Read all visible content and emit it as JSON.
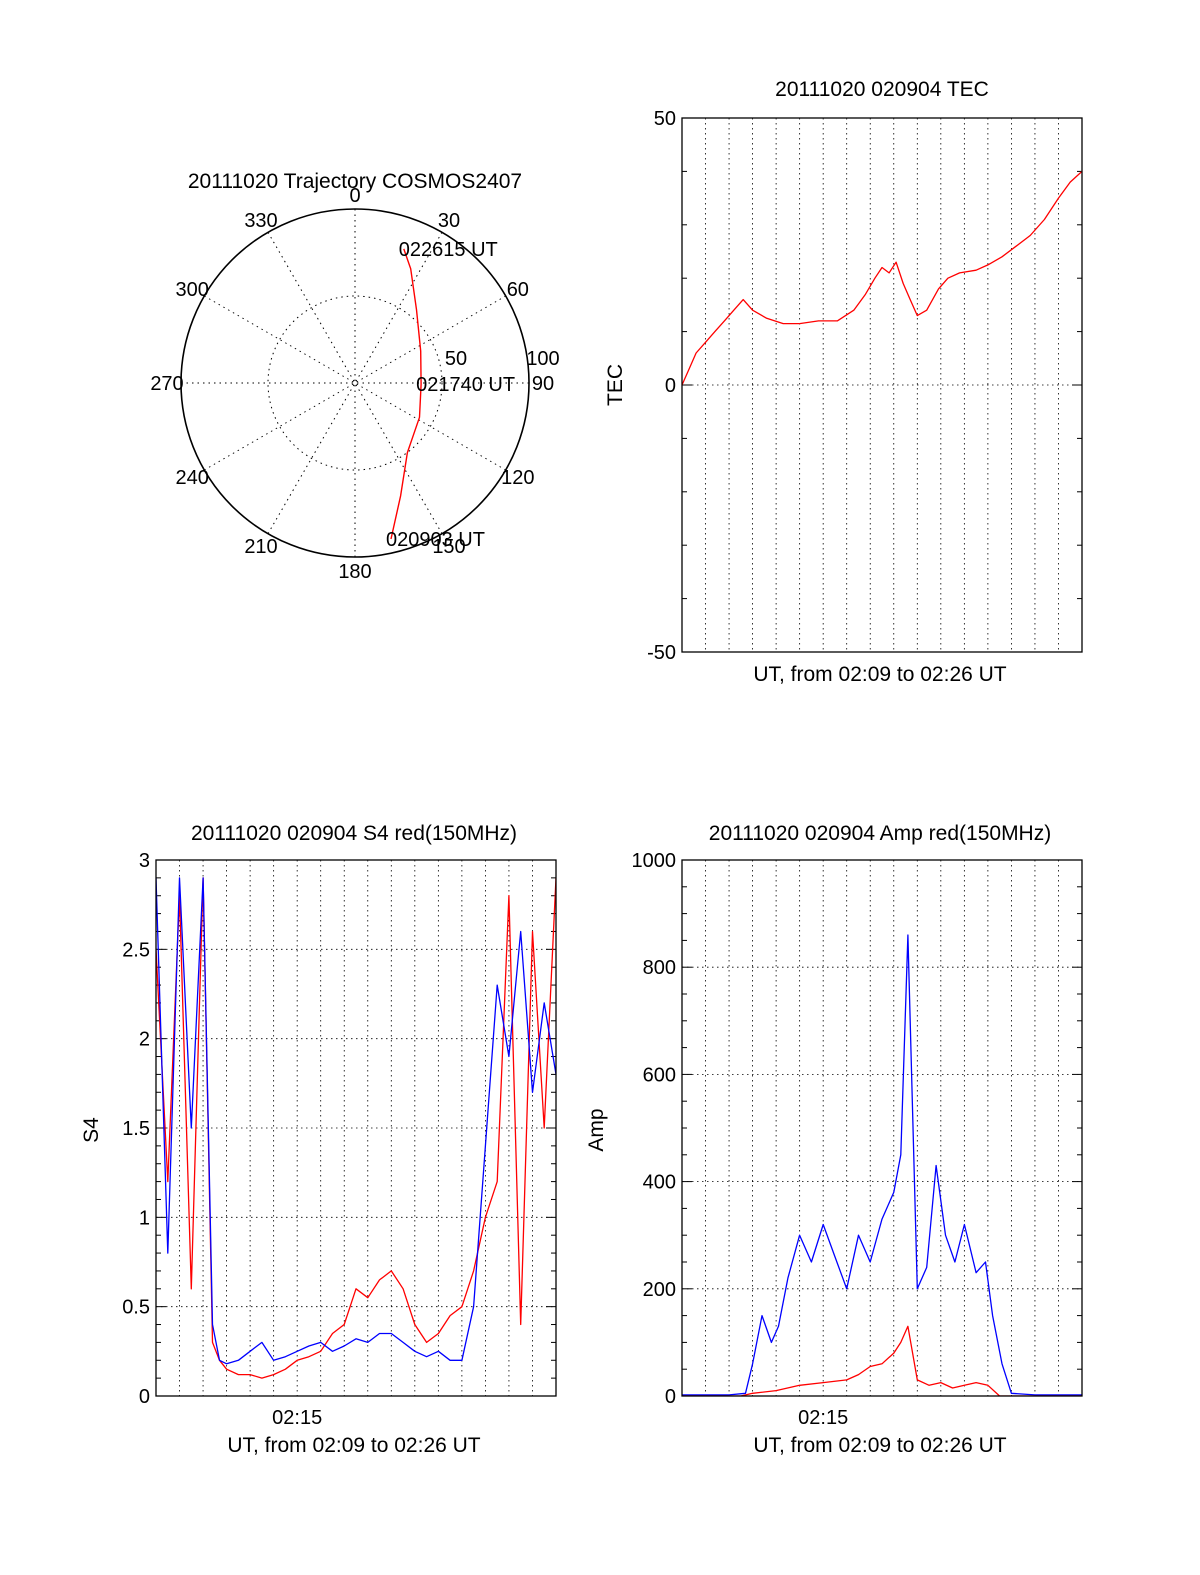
{
  "chart_data": [
    {
      "type": "polar",
      "title": "20111020 Trajectory COSMOS2407",
      "angle_labels": [
        "0",
        "30",
        "60",
        "90",
        "120",
        "150",
        "180",
        "210",
        "240",
        "270",
        "300",
        "330"
      ],
      "radius_labels": [
        "50",
        "100"
      ],
      "rlim": [
        0,
        100
      ],
      "grid": true,
      "series": [
        {
          "color": "#ff0000",
          "points": [
            {
              "az": 167,
              "r": 92
            },
            {
              "az": 158,
              "r": 70
            },
            {
              "az": 143,
              "r": 50
            },
            {
              "az": 118,
              "r": 42
            },
            {
              "az": 91,
              "r": 38
            },
            {
              "az": 64,
              "r": 42
            },
            {
              "az": 40,
              "r": 55
            },
            {
              "az": 26,
              "r": 73
            },
            {
              "az": 20,
              "r": 82
            }
          ]
        }
      ],
      "annotations": [
        {
          "text": "022615 UT",
          "az": 20,
          "r": 82
        },
        {
          "text": "021740 UT",
          "az": 91,
          "r": 38
        },
        {
          "text": "020903 UT",
          "az": 167,
          "r": 92
        }
      ]
    },
    {
      "type": "line",
      "title": "20111020 020904 TEC",
      "xlabel": "UT, from 02:09 to 02:26 UT",
      "ylabel": "TEC",
      "xlim": [
        0,
        17
      ],
      "ylim": [
        -50,
        50
      ],
      "yticks": [
        -50,
        0,
        50
      ],
      "grid": true,
      "series": [
        {
          "color": "#ff0000",
          "x": [
            0,
            0.3,
            0.6,
            1.0,
            1.4,
            1.8,
            2.2,
            2.6,
            3.0,
            3.6,
            4.3,
            5.0,
            5.8,
            6.6,
            7.3,
            7.8,
            8.2,
            8.5,
            8.8,
            9.1,
            9.4,
            9.7,
            10.0,
            10.4,
            10.9,
            11.3,
            11.8,
            12.5,
            13.0,
            13.6,
            14.2,
            14.8,
            15.4,
            16.0,
            16.5,
            17.0
          ],
          "y": [
            0,
            3,
            6,
            8,
            10,
            12,
            14,
            16,
            14,
            12.5,
            11.5,
            11.5,
            12,
            12,
            14,
            17,
            20,
            22,
            21,
            23,
            19,
            16,
            13,
            14,
            18,
            20,
            21,
            21.5,
            22.5,
            24,
            26,
            28,
            31,
            35,
            38,
            40
          ]
        }
      ]
    },
    {
      "type": "line",
      "title": "20111020 020904 S4 red(150MHz)",
      "xlabel": "UT, from 02:09 to 02:26 UT",
      "ylabel": "S4",
      "xlim": [
        0,
        17
      ],
      "ylim": [
        0,
        3
      ],
      "yticks": [
        0,
        0.5,
        1,
        1.5,
        2,
        2.5,
        3
      ],
      "xticks": [
        {
          "value": 6,
          "label": "02:15"
        }
      ],
      "grid": true,
      "series": [
        {
          "color": "#ff0000",
          "x": [
            0,
            0.5,
            1.0,
            1.5,
            2.0,
            2.4,
            2.7,
            3.0,
            3.5,
            4.0,
            4.5,
            5.0,
            5.5,
            6.0,
            6.5,
            7.0,
            7.5,
            8.0,
            8.5,
            9.0,
            9.5,
            10.0,
            10.5,
            11.0,
            11.5,
            12.0,
            12.5,
            13.0,
            13.5,
            14.0,
            14.5,
            15.0,
            15.5,
            16.0,
            16.5,
            17.0
          ],
          "y": [
            2.5,
            1.2,
            2.8,
            0.6,
            2.9,
            0.3,
            0.2,
            0.15,
            0.12,
            0.12,
            0.1,
            0.12,
            0.15,
            0.2,
            0.22,
            0.25,
            0.35,
            0.4,
            0.6,
            0.55,
            0.65,
            0.7,
            0.6,
            0.4,
            0.3,
            0.35,
            0.45,
            0.5,
            0.7,
            1.0,
            1.2,
            2.8,
            0.4,
            2.6,
            1.5,
            2.9
          ]
        },
        {
          "color": "#0000ff",
          "x": [
            0,
            0.5,
            1.0,
            1.5,
            2.0,
            2.4,
            2.7,
            3.0,
            3.5,
            4.0,
            4.5,
            5.0,
            5.5,
            6.0,
            6.5,
            7.0,
            7.5,
            8.0,
            8.5,
            9.0,
            9.5,
            10.0,
            10.5,
            11.0,
            11.5,
            12.0,
            12.5,
            13.0,
            13.5,
            14.0,
            14.5,
            15.0,
            15.5,
            16.0,
            16.5,
            17.0
          ],
          "y": [
            2.9,
            0.8,
            2.9,
            1.5,
            2.9,
            0.4,
            0.2,
            0.18,
            0.2,
            0.25,
            0.3,
            0.2,
            0.22,
            0.25,
            0.28,
            0.3,
            0.25,
            0.28,
            0.32,
            0.3,
            0.35,
            0.35,
            0.3,
            0.25,
            0.22,
            0.25,
            0.2,
            0.2,
            0.5,
            1.4,
            2.3,
            1.9,
            2.6,
            1.7,
            2.2,
            1.8
          ]
        }
      ]
    },
    {
      "type": "line",
      "title": "20111020 020904 Amp red(150MHz)",
      "xlabel": "UT, from 02:09 to 02:26 UT",
      "ylabel": "Amp",
      "xlim": [
        0,
        17
      ],
      "ylim": [
        0,
        1000
      ],
      "yticks": [
        0,
        200,
        400,
        600,
        800,
        1000
      ],
      "xticks": [
        {
          "value": 6,
          "label": "02:15"
        }
      ],
      "grid": true,
      "series": [
        {
          "color": "#0000ff",
          "x": [
            0,
            2.0,
            2.7,
            3.0,
            3.4,
            3.8,
            4.1,
            4.5,
            5.0,
            5.5,
            6.0,
            6.5,
            7.0,
            7.5,
            8.0,
            8.5,
            9.0,
            9.3,
            9.6,
            10.0,
            10.4,
            10.8,
            11.2,
            11.6,
            12.0,
            12.5,
            12.9,
            13.2,
            13.6,
            14.0,
            15.0,
            17.0
          ],
          "y": [
            2,
            2,
            5,
            60,
            150,
            100,
            130,
            220,
            300,
            250,
            320,
            260,
            200,
            300,
            250,
            330,
            380,
            450,
            860,
            200,
            240,
            430,
            300,
            250,
            320,
            230,
            250,
            150,
            60,
            5,
            2,
            2
          ]
        },
        {
          "color": "#ff0000",
          "x": [
            0,
            2.5,
            3.0,
            4.0,
            5.0,
            6.0,
            7.0,
            7.5,
            8.0,
            8.5,
            9.0,
            9.3,
            9.6,
            10.0,
            10.5,
            11.0,
            11.5,
            12.0,
            12.5,
            13.0,
            13.5,
            17.0
          ],
          "y": [
            0,
            0,
            5,
            10,
            20,
            25,
            30,
            40,
            55,
            60,
            80,
            100,
            130,
            30,
            20,
            25,
            15,
            20,
            25,
            20,
            0,
            0
          ]
        }
      ]
    }
  ]
}
